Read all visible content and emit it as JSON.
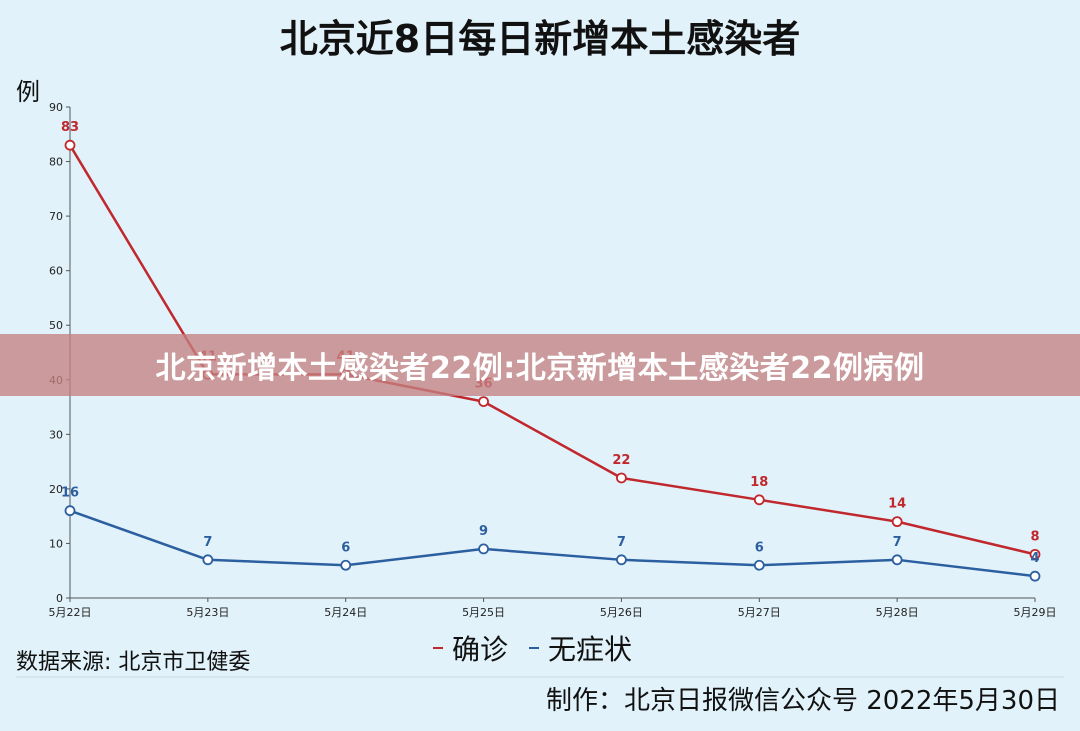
{
  "chart_data": {
    "type": "line",
    "title": "北京近8日每日新增本土感染者",
    "ylabel": "例",
    "ylim": [
      0,
      90
    ],
    "yticks": [
      0,
      10,
      20,
      30,
      40,
      50,
      60,
      70,
      80,
      90
    ],
    "categories": [
      "5月22日",
      "5月23日",
      "5月24日",
      "5月25日",
      "5月26日",
      "5月27日",
      "5月28日",
      "5月29日"
    ],
    "series": [
      {
        "name": "确诊",
        "color": "#c0282d",
        "values": [
          83,
          41,
          41,
          36,
          22,
          18,
          14,
          8
        ]
      },
      {
        "name": "无症状",
        "color": "#2c5fa0",
        "values": [
          16,
          7,
          6,
          9,
          7,
          6,
          7,
          4
        ]
      }
    ],
    "legend": "bottom-center",
    "grid": false
  },
  "source": "数据来源: 北京市卫健委",
  "credit": "制作：北京日报微信公众号 2022年5月30日",
  "banner": "北京新增本土感染者22例:北京新增本土感染者22例病例"
}
